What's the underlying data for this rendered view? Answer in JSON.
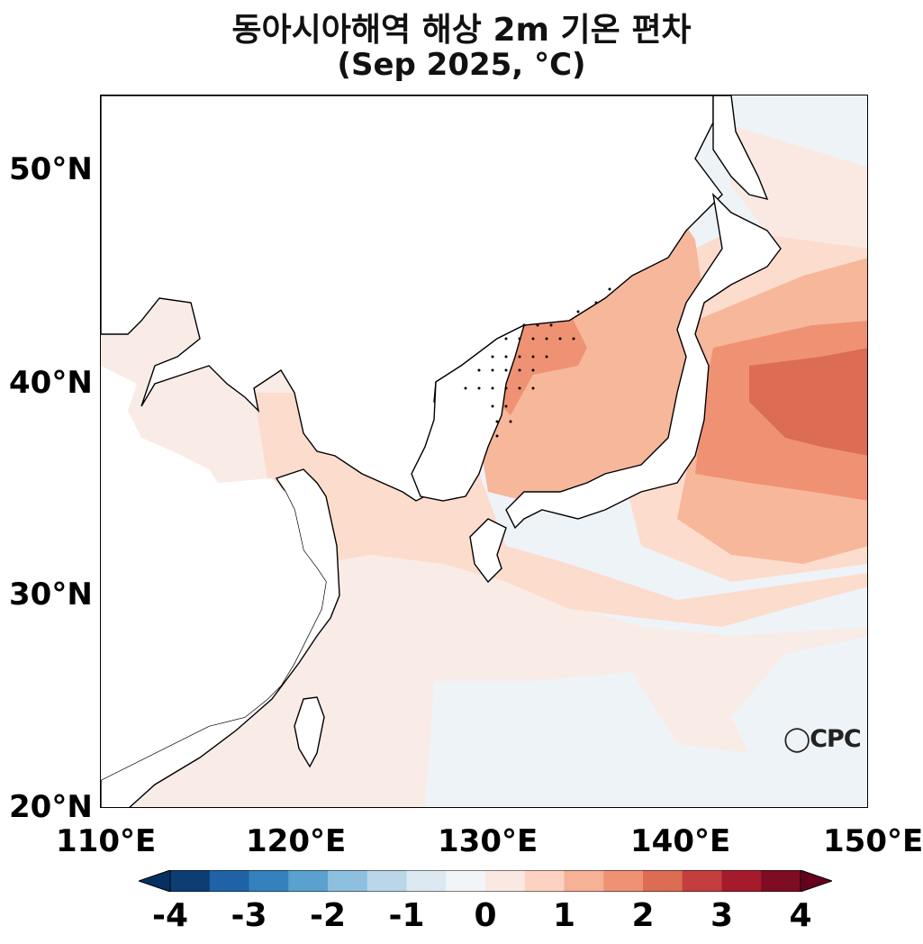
{
  "title": {
    "line1": "동아시아해역 해상 2m 기온 편차",
    "line2": "(Sep 2025, °C)"
  },
  "map": {
    "lon_labels": [
      "110°E",
      "120°E",
      "130°E",
      "140°E",
      "150°E"
    ],
    "lat_labels": [
      "50°N",
      "40°N",
      "30°N",
      "20°N"
    ]
  },
  "colorbar": {
    "ticks": [
      "-4",
      "-3",
      "-2",
      "-1",
      "0",
      "1",
      "2",
      "3",
      "4"
    ],
    "colors": [
      "#0c3e74",
      "#1f62a8",
      "#3581bd",
      "#5aa1cf",
      "#8cc0de",
      "#b9d7e9",
      "#dde9f2",
      "#f2f5f8",
      "#f9e9e2",
      "#fbd3c0",
      "#f6b196",
      "#ef9274",
      "#dc6c54",
      "#c33e3e",
      "#a51b2c",
      "#7e0c23"
    ],
    "over_color": "#67001f",
    "under_color": "#053061"
  },
  "logo": "CPC"
}
